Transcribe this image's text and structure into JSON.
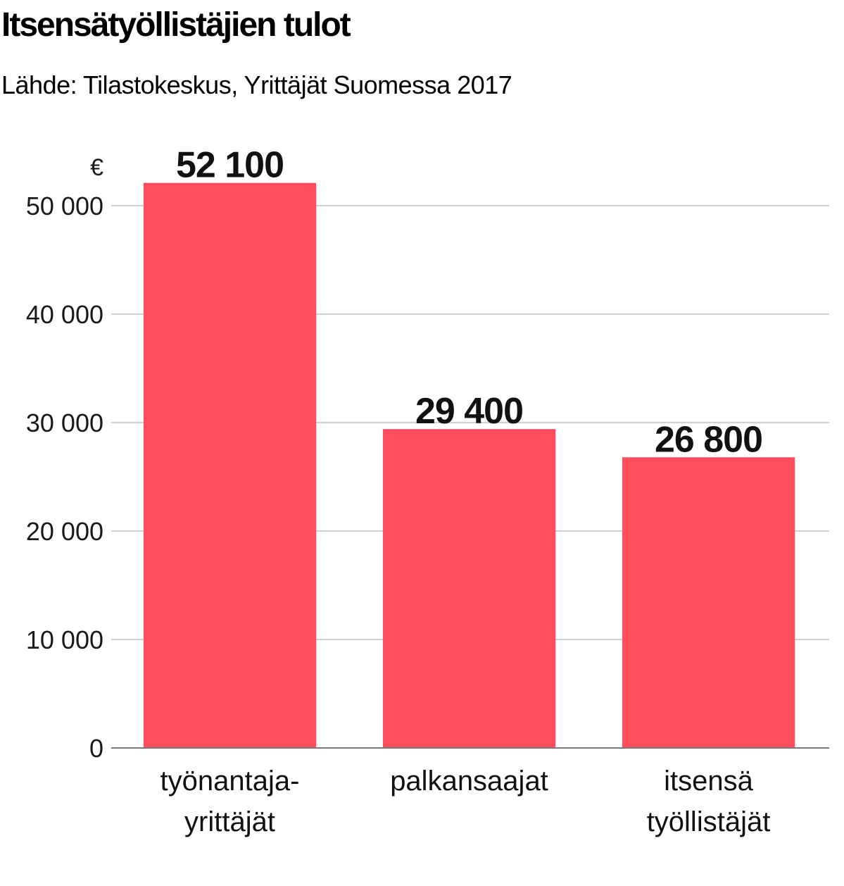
{
  "chart_data": {
    "type": "bar",
    "title": "Itsensätyöllistäjien tulot",
    "subtitle": "Lähde: Tilastokeskus, Yrittäjät Suomessa 2017",
    "ylabel": "€",
    "xlabel": "",
    "ylim": [
      0,
      55000
    ],
    "yticks": [
      0,
      10000,
      20000,
      30000,
      40000,
      50000
    ],
    "ytick_labels": [
      "0",
      "10 000",
      "20 000",
      "30 000",
      "40 000",
      "50 000"
    ],
    "grid": true,
    "categories": [
      [
        "työnantaja-",
        "yrittäjät"
      ],
      [
        "palkansaajat"
      ],
      [
        "itsensä",
        "työllistäjät"
      ]
    ],
    "values": [
      52100,
      29400,
      26800
    ],
    "value_labels": [
      "52 100",
      "29 400",
      "26 800"
    ],
    "bar_color": "#ff4d5e",
    "grid_color": "#d0d0d0",
    "axis_color": "#7a7a7a"
  }
}
